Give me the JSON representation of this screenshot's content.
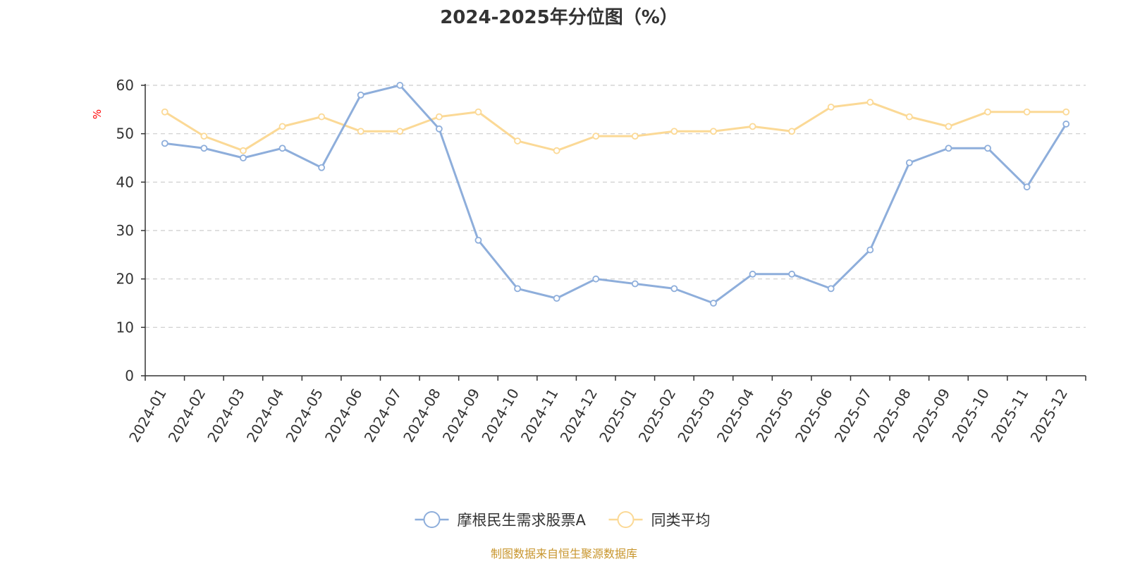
{
  "chart_data": {
    "type": "line",
    "title": "2024-2025年分位图（%）",
    "ylabel": "%",
    "xlabel": "",
    "ylim": [
      0,
      60
    ],
    "yticks": [
      0,
      10,
      20,
      30,
      40,
      50,
      60
    ],
    "grid": true,
    "legend_position": "bottom-center",
    "categories": [
      "2024-01",
      "2024-02",
      "2024-03",
      "2024-04",
      "2024-05",
      "2024-06",
      "2024-07",
      "2024-08",
      "2024-09",
      "2024-10",
      "2024-11",
      "2024-12",
      "2025-01",
      "2025-02",
      "2025-03",
      "2025-04",
      "2025-05",
      "2025-06",
      "2025-07",
      "2025-08",
      "2025-09",
      "2025-10",
      "2025-11",
      "2025-12"
    ],
    "series": [
      {
        "name": "摩根民生需求股票A",
        "color": "#8eaedb",
        "values": [
          48,
          47,
          45,
          47,
          43,
          58,
          60,
          51,
          28,
          18,
          16,
          20,
          19,
          18,
          15,
          21,
          21,
          18,
          26,
          44,
          47,
          47,
          39,
          52
        ]
      },
      {
        "name": "同类平均",
        "color": "#fbd996",
        "values": [
          54.5,
          49.5,
          46.5,
          51.5,
          53.5,
          50.5,
          50.5,
          53.5,
          54.5,
          48.5,
          46.5,
          49.5,
          49.5,
          50.5,
          50.5,
          51.5,
          50.5,
          55.5,
          56.5,
          53.5,
          51.5,
          54.5,
          54.5,
          54.5
        ]
      }
    ]
  },
  "source_note": "制图数据来自恒生聚源数据库",
  "colors": {
    "unit_label": "#ff0000",
    "source_note": "#c8962e",
    "axis": "#333333",
    "grid": "#cccccc"
  }
}
